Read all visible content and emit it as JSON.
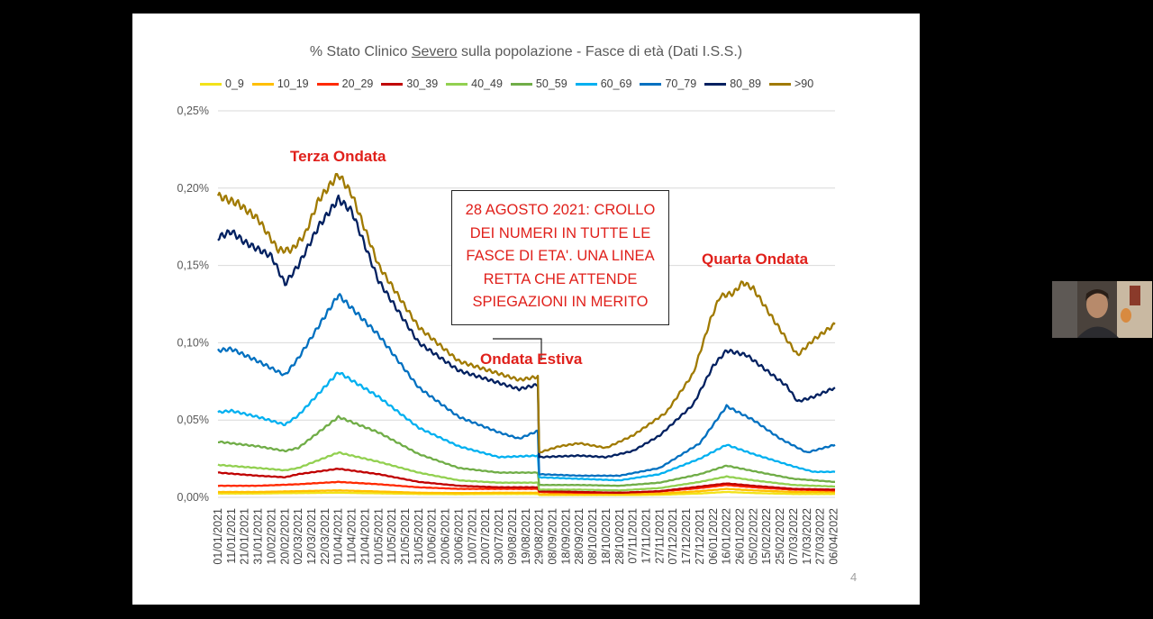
{
  "slide": {
    "page_number": "4"
  },
  "chart_data": {
    "type": "line",
    "title_parts": [
      "% Stato Clinico ",
      "Severo",
      " sulla popolazione - Fasce di età (Dati I.S.S.)"
    ],
    "xlabel": "",
    "ylabel": "",
    "ylim": [
      0,
      0.25
    ],
    "yticks": [
      0,
      0.05,
      0.1,
      0.15,
      0.2,
      0.25
    ],
    "ytick_labels": [
      "0,00%",
      "0,05%",
      "0,10%",
      "0,15%",
      "0,20%",
      "0,25%"
    ],
    "x_labels": [
      "01/01/2021",
      "11/01/2021",
      "21/01/2021",
      "31/01/2021",
      "10/02/2021",
      "20/02/2021",
      "02/03/2021",
      "12/03/2021",
      "22/03/2021",
      "01/04/2021",
      "11/04/2021",
      "21/04/2021",
      "01/05/2021",
      "11/05/2021",
      "21/05/2021",
      "31/05/2021",
      "10/06/2021",
      "20/06/2021",
      "30/06/2021",
      "10/07/2021",
      "20/07/2021",
      "30/07/2021",
      "09/08/2021",
      "19/08/2021",
      "29/08/2021",
      "08/09/2021",
      "18/09/2021",
      "28/09/2021",
      "08/10/2021",
      "18/10/2021",
      "28/10/2021",
      "07/11/2021",
      "17/11/2021",
      "27/11/2021",
      "07/12/2021",
      "17/12/2021",
      "27/12/2021",
      "06/01/2022",
      "16/01/2022",
      "26/01/2022",
      "05/02/2022",
      "15/02/2022",
      "25/02/2022",
      "07/03/2022",
      "17/03/2022",
      "27/03/2022",
      "06/04/2022"
    ],
    "grid": true,
    "legend_position": "top",
    "series": [
      {
        "name": "0_9",
        "color": "#f2e21a",
        "values": [
          [
            0,
            0.0025
          ],
          [
            30,
            0.0025
          ],
          [
            60,
            0.0028
          ],
          [
            90,
            0.003
          ],
          [
            120,
            0.0026
          ],
          [
            150,
            0.0022
          ],
          [
            180,
            0.002
          ],
          [
            210,
            0.0022
          ],
          [
            239,
            0.0022
          ],
          [
            240,
            0.0015
          ],
          [
            270,
            0.0015
          ],
          [
            300,
            0.0015
          ],
          [
            330,
            0.0017
          ],
          [
            360,
            0.0025
          ],
          [
            380,
            0.0035
          ],
          [
            400,
            0.0028
          ],
          [
            430,
            0.0022
          ],
          [
            461,
            0.0022
          ]
        ]
      },
      {
        "name": "10_19",
        "color": "#ffbf00",
        "values": [
          [
            0,
            0.0035
          ],
          [
            30,
            0.0035
          ],
          [
            60,
            0.004
          ],
          [
            90,
            0.0045
          ],
          [
            120,
            0.0038
          ],
          [
            150,
            0.003
          ],
          [
            180,
            0.0028
          ],
          [
            210,
            0.003
          ],
          [
            239,
            0.003
          ],
          [
            240,
            0.002
          ],
          [
            270,
            0.002
          ],
          [
            300,
            0.002
          ],
          [
            330,
            0.0025
          ],
          [
            360,
            0.004
          ],
          [
            380,
            0.0055
          ],
          [
            400,
            0.0045
          ],
          [
            430,
            0.0035
          ],
          [
            461,
            0.0035
          ]
        ]
      },
      {
        "name": "20_29",
        "color": "#ff2a00",
        "values": [
          [
            0,
            0.0075
          ],
          [
            30,
            0.0075
          ],
          [
            60,
            0.0085
          ],
          [
            90,
            0.01
          ],
          [
            120,
            0.0085
          ],
          [
            150,
            0.0065
          ],
          [
            180,
            0.0055
          ],
          [
            210,
            0.0055
          ],
          [
            239,
            0.0055
          ],
          [
            240,
            0.0035
          ],
          [
            270,
            0.003
          ],
          [
            300,
            0.003
          ],
          [
            330,
            0.0038
          ],
          [
            360,
            0.006
          ],
          [
            380,
            0.008
          ],
          [
            400,
            0.0065
          ],
          [
            430,
            0.005
          ],
          [
            461,
            0.0045
          ]
        ]
      },
      {
        "name": "30_39",
        "color": "#c00000",
        "values": [
          [
            0,
            0.016
          ],
          [
            30,
            0.014
          ],
          [
            50,
            0.013
          ],
          [
            60,
            0.015
          ],
          [
            90,
            0.0185
          ],
          [
            120,
            0.015
          ],
          [
            150,
            0.01
          ],
          [
            180,
            0.0075
          ],
          [
            210,
            0.0065
          ],
          [
            239,
            0.0065
          ],
          [
            240,
            0.004
          ],
          [
            270,
            0.0035
          ],
          [
            300,
            0.003
          ],
          [
            330,
            0.004
          ],
          [
            360,
            0.007
          ],
          [
            380,
            0.009
          ],
          [
            400,
            0.0075
          ],
          [
            430,
            0.0055
          ],
          [
            461,
            0.005
          ]
        ]
      },
      {
        "name": "40_49",
        "color": "#92d050",
        "values": [
          [
            0,
            0.021
          ],
          [
            30,
            0.019
          ],
          [
            50,
            0.0175
          ],
          [
            60,
            0.019
          ],
          [
            90,
            0.029
          ],
          [
            120,
            0.023
          ],
          [
            150,
            0.016
          ],
          [
            180,
            0.011
          ],
          [
            210,
            0.0095
          ],
          [
            239,
            0.0095
          ],
          [
            240,
            0.005
          ],
          [
            270,
            0.005
          ],
          [
            300,
            0.0045
          ],
          [
            330,
            0.006
          ],
          [
            360,
            0.01
          ],
          [
            380,
            0.0135
          ],
          [
            400,
            0.011
          ],
          [
            430,
            0.008
          ],
          [
            461,
            0.007
          ]
        ]
      },
      {
        "name": "50_59",
        "color": "#70ad47",
        "values": [
          [
            0,
            0.036
          ],
          [
            30,
            0.033
          ],
          [
            50,
            0.03
          ],
          [
            60,
            0.032
          ],
          [
            90,
            0.052
          ],
          [
            120,
            0.042
          ],
          [
            150,
            0.028
          ],
          [
            180,
            0.019
          ],
          [
            210,
            0.016
          ],
          [
            239,
            0.016
          ],
          [
            240,
            0.008
          ],
          [
            270,
            0.008
          ],
          [
            300,
            0.0075
          ],
          [
            330,
            0.0095
          ],
          [
            360,
            0.015
          ],
          [
            380,
            0.0205
          ],
          [
            400,
            0.017
          ],
          [
            430,
            0.012
          ],
          [
            461,
            0.01
          ]
        ]
      },
      {
        "name": "60_69",
        "color": "#00b0f0",
        "values": [
          [
            0,
            0.055
          ],
          [
            10,
            0.056
          ],
          [
            30,
            0.052
          ],
          [
            50,
            0.047
          ],
          [
            60,
            0.053
          ],
          [
            90,
            0.081
          ],
          [
            120,
            0.065
          ],
          [
            150,
            0.045
          ],
          [
            180,
            0.033
          ],
          [
            210,
            0.026
          ],
          [
            239,
            0.027
          ],
          [
            240,
            0.013
          ],
          [
            270,
            0.012
          ],
          [
            300,
            0.011
          ],
          [
            330,
            0.015
          ],
          [
            360,
            0.025
          ],
          [
            380,
            0.034
          ],
          [
            400,
            0.028
          ],
          [
            430,
            0.02
          ],
          [
            445,
            0.0165
          ],
          [
            461,
            0.0165
          ]
        ]
      },
      {
        "name": "70_79",
        "color": "#0070c0",
        "values": [
          [
            0,
            0.095
          ],
          [
            10,
            0.096
          ],
          [
            30,
            0.088
          ],
          [
            50,
            0.079
          ],
          [
            60,
            0.09
          ],
          [
            90,
            0.131
          ],
          [
            120,
            0.105
          ],
          [
            150,
            0.071
          ],
          [
            180,
            0.052
          ],
          [
            210,
            0.042
          ],
          [
            225,
            0.038
          ],
          [
            239,
            0.043
          ],
          [
            240,
            0.015
          ],
          [
            270,
            0.014
          ],
          [
            300,
            0.014
          ],
          [
            330,
            0.019
          ],
          [
            360,
            0.035
          ],
          [
            380,
            0.059
          ],
          [
            400,
            0.05
          ],
          [
            420,
            0.038
          ],
          [
            440,
            0.029
          ],
          [
            461,
            0.034
          ]
        ]
      },
      {
        "name": "80_89",
        "color": "#002060",
        "values": [
          [
            0,
            0.168
          ],
          [
            10,
            0.172
          ],
          [
            20,
            0.165
          ],
          [
            40,
            0.156
          ],
          [
            50,
            0.138
          ],
          [
            60,
            0.15
          ],
          [
            75,
            0.175
          ],
          [
            90,
            0.193
          ],
          [
            100,
            0.185
          ],
          [
            120,
            0.14
          ],
          [
            150,
            0.1
          ],
          [
            180,
            0.082
          ],
          [
            210,
            0.074
          ],
          [
            225,
            0.07
          ],
          [
            239,
            0.073
          ],
          [
            240,
            0.026
          ],
          [
            270,
            0.027
          ],
          [
            290,
            0.026
          ],
          [
            310,
            0.03
          ],
          [
            330,
            0.04
          ],
          [
            355,
            0.06
          ],
          [
            370,
            0.085
          ],
          [
            380,
            0.095
          ],
          [
            395,
            0.092
          ],
          [
            410,
            0.082
          ],
          [
            425,
            0.072
          ],
          [
            433,
            0.062
          ],
          [
            445,
            0.065
          ],
          [
            461,
            0.071
          ]
        ]
      },
      {
        "name": ">90",
        "color": "#a07a00",
        "values": [
          [
            0,
            0.195
          ],
          [
            15,
            0.19
          ],
          [
            30,
            0.18
          ],
          [
            45,
            0.16
          ],
          [
            55,
            0.16
          ],
          [
            65,
            0.17
          ],
          [
            75,
            0.192
          ],
          [
            90,
            0.209
          ],
          [
            100,
            0.196
          ],
          [
            120,
            0.15
          ],
          [
            150,
            0.11
          ],
          [
            180,
            0.088
          ],
          [
            210,
            0.08
          ],
          [
            225,
            0.076
          ],
          [
            239,
            0.078
          ],
          [
            240,
            0.029
          ],
          [
            255,
            0.033
          ],
          [
            270,
            0.035
          ],
          [
            290,
            0.032
          ],
          [
            310,
            0.04
          ],
          [
            335,
            0.055
          ],
          [
            355,
            0.08
          ],
          [
            368,
            0.115
          ],
          [
            375,
            0.13
          ],
          [
            385,
            0.132
          ],
          [
            392,
            0.139
          ],
          [
            400,
            0.135
          ],
          [
            415,
            0.115
          ],
          [
            425,
            0.102
          ],
          [
            433,
            0.092
          ],
          [
            445,
            0.102
          ],
          [
            461,
            0.112
          ]
        ]
      }
    ],
    "annotations": [
      {
        "text": "Terza Ondata"
      },
      {
        "text": "Ondata Estiva"
      },
      {
        "text": "Quarta Ondata"
      },
      {
        "text": "28 AGOSTO 2021: CROLLO DEI NUMERI IN TUTTE LE FASCE DI ETA'. UNA LINEA RETTA CHE ATTENDE SPIEGAZIONI IN MERITO",
        "lines": [
          "28 AGOSTO 2021: CROLLO",
          "DEI NUMERI IN TUTTE LE",
          "FASCE DI ETA'. UNA LINEA",
          "RETTA CHE ATTENDE",
          "SPIEGAZIONI IN MERITO"
        ]
      }
    ]
  }
}
